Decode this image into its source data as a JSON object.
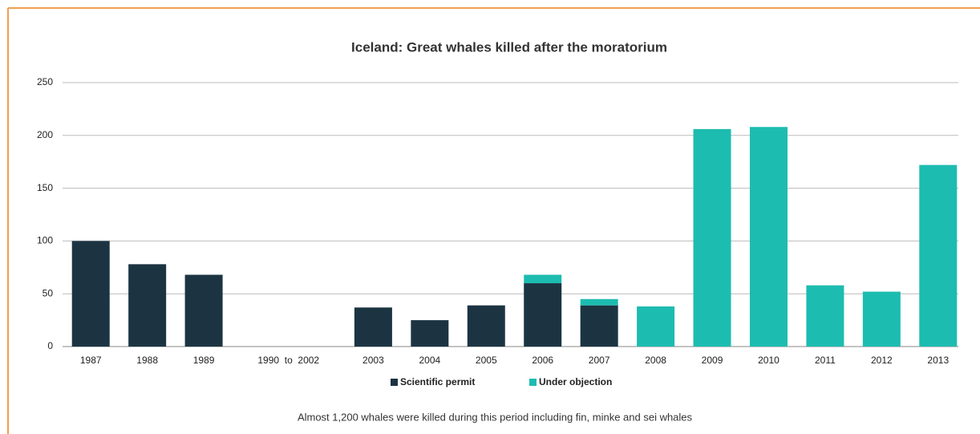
{
  "chart_data": {
    "type": "bar",
    "stacked": true,
    "title": "Iceland: Great whales killed after the moratorium",
    "caption": "Almost 1,200 whales were killed during this period including fin, minke and sei whales",
    "categories": [
      "1987",
      "1988",
      "1989",
      "1990  to  2002",
      "2003",
      "2004",
      "2005",
      "2006",
      "2007",
      "2008",
      "2009",
      "2010",
      "2011",
      "2012",
      "2013"
    ],
    "series": [
      {
        "name": "Scientific permit",
        "color": "#1c3442",
        "values": [
          100,
          78,
          68,
          null,
          37,
          25,
          39,
          60,
          39,
          null,
          null,
          null,
          null,
          null,
          null
        ]
      },
      {
        "name": "Under objection",
        "color": "#1dbcb0",
        "values": [
          null,
          null,
          null,
          null,
          null,
          null,
          null,
          8,
          6,
          38,
          206,
          208,
          58,
          52,
          172
        ]
      }
    ],
    "ylim": [
      0,
      250
    ],
    "yticks": [
      0,
      50,
      100,
      150,
      200,
      250
    ],
    "grid": true
  }
}
